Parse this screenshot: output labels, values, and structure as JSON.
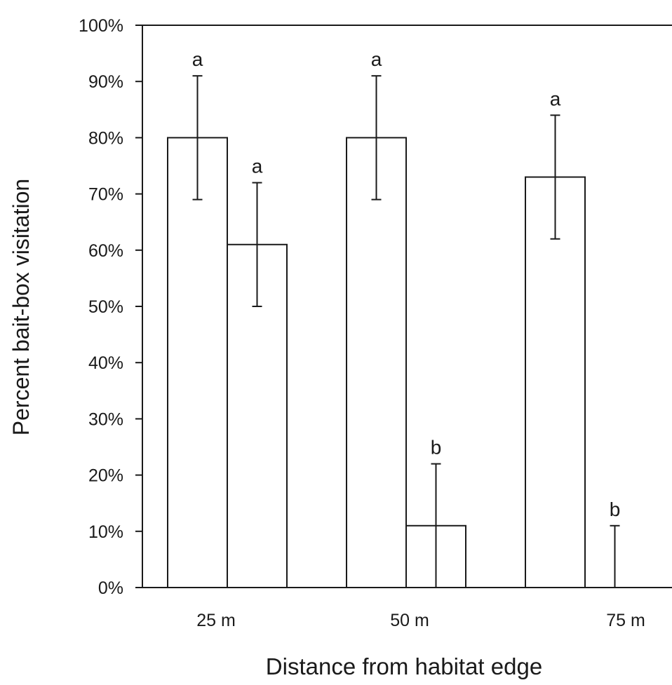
{
  "chart_data": {
    "type": "bar",
    "xlabel": "Distance from habitat edge",
    "ylabel": "Percent bait-box visitation",
    "ylim": [
      0,
      100
    ],
    "yticks": [
      "0%",
      "10%",
      "20%",
      "30%",
      "40%",
      "50%",
      "60%",
      "70%",
      "80%",
      "90%",
      "100%"
    ],
    "categories": [
      "25 m",
      "50 m",
      "75 m"
    ],
    "series": [
      {
        "values": [
          80,
          80,
          73
        ],
        "error_upper": [
          91,
          91,
          84
        ],
        "error_lower": [
          69,
          69,
          62
        ],
        "significance": [
          "a",
          "a",
          "a"
        ]
      },
      {
        "values": [
          61,
          11,
          0
        ],
        "error_upper": [
          72,
          22,
          11
        ],
        "error_lower": [
          50,
          0,
          0
        ],
        "significance": [
          "a",
          "b",
          "b"
        ]
      }
    ],
    "grid": false,
    "legend": "none",
    "colors": {
      "bar_fill": "#ffffff",
      "stroke": "#1a1a1a",
      "background": "#ffffff"
    }
  }
}
